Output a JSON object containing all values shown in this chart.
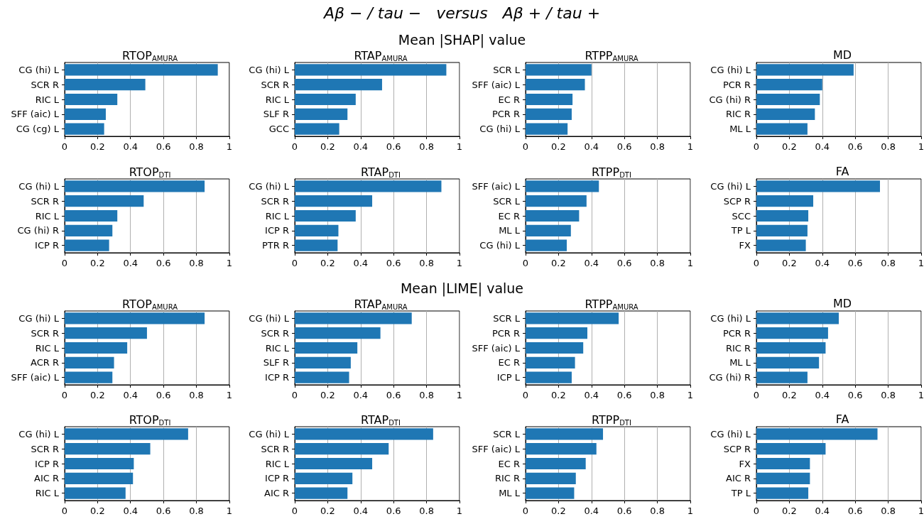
{
  "chart_data": [
    {
      "type": "bar",
      "orientation": "horizontal",
      "title": "RTOP$_{AMURA}$",
      "annotations": [
        "Aβ − / tau −   versus   Aβ + / tau +",
        "Mean |SHAP| value"
      ],
      "categories": [
        "CG (hi) L",
        "SCR R",
        "RIC L",
        "SFF (aic) L",
        "CG (cg) L"
      ],
      "values": [
        0.93,
        0.49,
        0.32,
        0.25,
        0.24
      ],
      "color": "#1f77b4",
      "xlim": [
        0,
        1
      ],
      "xticks": [
        0,
        0.2,
        0.4,
        0.6,
        0.8,
        1
      ],
      "grid": "x"
    },
    {
      "type": "bar",
      "orientation": "horizontal",
      "title": "RTAP$_{AMURA}$",
      "categories": [
        "CG (hi) L",
        "SCR R",
        "RIC L",
        "SLF R",
        "GCC"
      ],
      "values": [
        0.92,
        0.53,
        0.37,
        0.32,
        0.27
      ],
      "color": "#1f77b4",
      "xlim": [
        0,
        1
      ],
      "xticks": [
        0,
        0.2,
        0.4,
        0.6,
        0.8,
        1
      ],
      "grid": "x"
    },
    {
      "type": "bar",
      "orientation": "horizontal",
      "title": "RTPP$_{AMURA}$",
      "categories": [
        "SCR L",
        "SFF (aic) L",
        "EC R",
        "PCR R",
        "CG (hi) L"
      ],
      "values": [
        0.4,
        0.36,
        0.285,
        0.28,
        0.255
      ],
      "color": "#1f77b4",
      "xlim": [
        0,
        1
      ],
      "xticks": [
        0,
        0.2,
        0.4,
        0.6,
        0.8,
        1
      ],
      "grid": "x"
    },
    {
      "type": "bar",
      "orientation": "horizontal",
      "title": "MD",
      "categories": [
        "CG (hi) L",
        "PCR R",
        "CG (hi) R",
        "RIC R",
        "ML L"
      ],
      "values": [
        0.59,
        0.4,
        0.385,
        0.355,
        0.31
      ],
      "color": "#1f77b4",
      "xlim": [
        0,
        1
      ],
      "xticks": [
        0,
        0.2,
        0.4,
        0.6,
        0.8,
        1
      ],
      "grid": "x"
    },
    {
      "type": "bar",
      "orientation": "horizontal",
      "title": "RTOP$_{DTI}$",
      "categories": [
        "CG (hi) L",
        "SCR R",
        "RIC L",
        "CG (hi) R",
        "ICP R"
      ],
      "values": [
        0.85,
        0.48,
        0.32,
        0.29,
        0.27
      ],
      "color": "#1f77b4",
      "xlim": [
        0,
        1
      ],
      "xticks": [
        0,
        0.2,
        0.4,
        0.6,
        0.8,
        1
      ],
      "grid": "x"
    },
    {
      "type": "bar",
      "orientation": "horizontal",
      "title": "RTAP$_{DTI}$",
      "categories": [
        "CG (hi) L",
        "SCR R",
        "RIC L",
        "ICP R",
        "PTR R"
      ],
      "values": [
        0.89,
        0.47,
        0.37,
        0.265,
        0.26
      ],
      "color": "#1f77b4",
      "xlim": [
        0,
        1
      ],
      "xticks": [
        0,
        0.2,
        0.4,
        0.6,
        0.8,
        1
      ],
      "grid": "x"
    },
    {
      "type": "bar",
      "orientation": "horizontal",
      "title": "RTPP$_{DTI}$",
      "categories": [
        "SFF (aic) L",
        "SCR L",
        "EC R",
        "ML L",
        "CG (hi) L"
      ],
      "values": [
        0.445,
        0.37,
        0.325,
        0.275,
        0.25
      ],
      "color": "#1f77b4",
      "xlim": [
        0,
        1
      ],
      "xticks": [
        0,
        0.2,
        0.4,
        0.6,
        0.8,
        1
      ],
      "grid": "x"
    },
    {
      "type": "bar",
      "orientation": "horizontal",
      "title": "FA",
      "categories": [
        "CG (hi) L",
        "SCP R",
        "SCC",
        "TP L",
        "FX"
      ],
      "values": [
        0.75,
        0.345,
        0.315,
        0.31,
        0.3
      ],
      "color": "#1f77b4",
      "xlim": [
        0,
        1
      ],
      "xticks": [
        0,
        0.2,
        0.4,
        0.6,
        0.8,
        1
      ],
      "grid": "x"
    },
    {
      "type": "bar",
      "orientation": "horizontal",
      "title": "RTOP$_{AMURA}$",
      "annotations": [
        "Mean |LIME| value"
      ],
      "categories": [
        "CG (hi) L",
        "SCR R",
        "RIC L",
        "ACR R",
        "SFF (aic) L"
      ],
      "values": [
        0.85,
        0.5,
        0.38,
        0.3,
        0.29
      ],
      "color": "#1f77b4",
      "xlim": [
        0,
        1
      ],
      "xticks": [
        0,
        0.2,
        0.4,
        0.6,
        0.8,
        1
      ],
      "grid": "x"
    },
    {
      "type": "bar",
      "orientation": "horizontal",
      "title": "RTAP$_{AMURA}$",
      "categories": [
        "CG (hi) L",
        "SCR R",
        "RIC L",
        "SLF R",
        "ICP R"
      ],
      "values": [
        0.71,
        0.52,
        0.38,
        0.34,
        0.33
      ],
      "color": "#1f77b4",
      "xlim": [
        0,
        1
      ],
      "xticks": [
        0,
        0.2,
        0.4,
        0.6,
        0.8,
        1
      ],
      "grid": "x"
    },
    {
      "type": "bar",
      "orientation": "horizontal",
      "title": "RTPP$_{AMURA}$",
      "categories": [
        "SCR L",
        "PCR R",
        "SFF (aic) L",
        "EC R",
        "ICP L"
      ],
      "values": [
        0.565,
        0.375,
        0.35,
        0.3,
        0.28
      ],
      "color": "#1f77b4",
      "xlim": [
        0,
        1
      ],
      "xticks": [
        0,
        0.2,
        0.4,
        0.6,
        0.8,
        1
      ],
      "grid": "x"
    },
    {
      "type": "bar",
      "orientation": "horizontal",
      "title": "MD",
      "categories": [
        "CG (hi) L",
        "PCR R",
        "RIC R",
        "ML L",
        "CG (hi) R"
      ],
      "values": [
        0.5,
        0.435,
        0.42,
        0.38,
        0.31
      ],
      "color": "#1f77b4",
      "xlim": [
        0,
        1
      ],
      "xticks": [
        0,
        0.2,
        0.4,
        0.6,
        0.8,
        1
      ],
      "grid": "x"
    },
    {
      "type": "bar",
      "orientation": "horizontal",
      "title": "RTOP$_{DTI}$",
      "categories": [
        "CG (hi) L",
        "SCR R",
        "ICP R",
        "AIC R",
        "RIC L"
      ],
      "values": [
        0.75,
        0.52,
        0.42,
        0.415,
        0.37
      ],
      "color": "#1f77b4",
      "xlim": [
        0,
        1
      ],
      "xticks": [
        0,
        0.2,
        0.4,
        0.6,
        0.8,
        1
      ],
      "grid": "x"
    },
    {
      "type": "bar",
      "orientation": "horizontal",
      "title": "RTAP$_{DTI}$",
      "categories": [
        "CG (hi) L",
        "SCR R",
        "RIC L",
        "ICP R",
        "AIC R"
      ],
      "values": [
        0.84,
        0.57,
        0.47,
        0.35,
        0.32
      ],
      "color": "#1f77b4",
      "xlim": [
        0,
        1
      ],
      "xticks": [
        0,
        0.2,
        0.4,
        0.6,
        0.8,
        1
      ],
      "grid": "x"
    },
    {
      "type": "bar",
      "orientation": "horizontal",
      "title": "RTPP$_{DTI}$",
      "categories": [
        "SCR L",
        "SFF (aic) L",
        "EC R",
        "RIC R",
        "ML L"
      ],
      "values": [
        0.47,
        0.43,
        0.365,
        0.305,
        0.295
      ],
      "color": "#1f77b4",
      "xlim": [
        0,
        1
      ],
      "xticks": [
        0,
        0.2,
        0.4,
        0.6,
        0.8,
        1
      ],
      "grid": "x"
    },
    {
      "type": "bar",
      "orientation": "horizontal",
      "title": "FA",
      "categories": [
        "CG (hi) L",
        "SCP R",
        "FX",
        "AIC R",
        "TP L"
      ],
      "values": [
        0.735,
        0.42,
        0.325,
        0.325,
        0.315
      ],
      "color": "#1f77b4",
      "xlim": [
        0,
        1
      ],
      "xticks": [
        0,
        0.2,
        0.4,
        0.6,
        0.8,
        1
      ],
      "grid": "x"
    }
  ]
}
